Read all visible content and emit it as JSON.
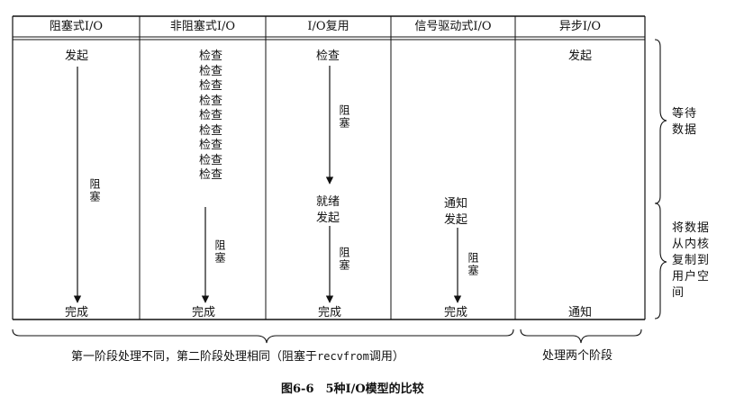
{
  "columns": [
    {
      "header": "阻塞式I/O"
    },
    {
      "header": "非阻塞式I/O"
    },
    {
      "header": "I/O复用"
    },
    {
      "header": "信号驱动式I/O"
    },
    {
      "header": "异步I/O"
    }
  ],
  "col1": {
    "start": "发起",
    "block": "阻塞",
    "done": "完成"
  },
  "col2": {
    "checks": [
      "检查",
      "检查",
      "检查",
      "检查",
      "检查",
      "检查",
      "检查",
      "检查",
      "检查"
    ],
    "block": "阻塞",
    "done": "完成"
  },
  "col3": {
    "check": "检查",
    "block1": "阻塞",
    "ready": "就绪",
    "start": "发起",
    "block2": "阻塞",
    "done": "完成"
  },
  "col4": {
    "notify": "通知",
    "start": "发起",
    "block": "阻塞",
    "done": "完成"
  },
  "col5": {
    "start": "发起",
    "notify": "通知"
  },
  "side_labels": {
    "wait_line1": "等待",
    "wait_line2": "数据",
    "copy_line1": "将数据",
    "copy_line2": "从内核",
    "copy_line3": "复制到",
    "copy_line4": "用户空",
    "copy_line5": "间"
  },
  "bottom": {
    "left_pre": "第一阶段处理不同，第二阶段处理相同（阻塞于",
    "left_code": "recvfrom",
    "left_post": "调用）",
    "right": "处理两个阶段"
  },
  "caption": "图6-6　5种I/O模型的比较"
}
